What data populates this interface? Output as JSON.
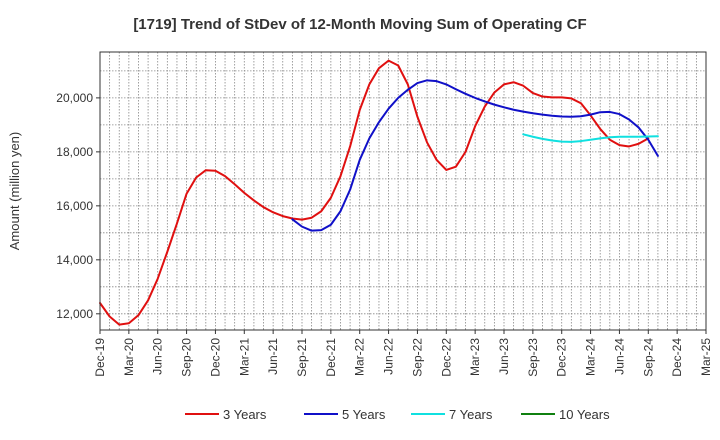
{
  "chart_data": {
    "type": "line",
    "title": "[1719]  Trend of StDev of 12-Month Moving Sum of Operating CF",
    "xlabel": "",
    "ylabel": "Amount (million yen)",
    "ylim": [
      11400,
      21700
    ],
    "yticks": [
      12000,
      14000,
      16000,
      18000,
      20000
    ],
    "ytick_labels": [
      "12,000",
      "14,000",
      "16,000",
      "18,000",
      "20,000"
    ],
    "x_range": [
      "2019-12",
      "2025-03"
    ],
    "xtick_labels": [
      "Dec-19",
      "Mar-20",
      "Jun-20",
      "Sep-20",
      "Dec-20",
      "Mar-21",
      "Jun-21",
      "Sep-21",
      "Dec-21",
      "Mar-22",
      "Jun-22",
      "Sep-22",
      "Dec-22",
      "Mar-23",
      "Jun-23",
      "Sep-23",
      "Dec-23",
      "Mar-24",
      "Jun-24",
      "Sep-24",
      "Dec-24",
      "Mar-25"
    ],
    "grid": true,
    "legend_position": "bottom",
    "series": [
      {
        "name": "3 Years",
        "color": "#e01010",
        "start": "2019-12",
        "values": [
          12400,
          11900,
          11600,
          11650,
          11950,
          12500,
          13300,
          14300,
          15350,
          16450,
          17050,
          17320,
          17300,
          17100,
          16800,
          16480,
          16200,
          15950,
          15760,
          15620,
          15530,
          15490,
          15560,
          15800,
          16300,
          17100,
          18200,
          19550,
          20500,
          21100,
          21380,
          21200,
          20500,
          19300,
          18350,
          17700,
          17330,
          17450,
          18000,
          18950,
          19680,
          20200,
          20500,
          20580,
          20450,
          20180,
          20050,
          20020,
          20020,
          19980,
          19800,
          19350,
          18850,
          18450,
          18250,
          18200,
          18300,
          18500
        ]
      },
      {
        "name": "5 Years",
        "color": "#1010c8",
        "start": "2021-08",
        "values": [
          15500,
          15230,
          15080,
          15100,
          15300,
          15800,
          16600,
          17700,
          18500,
          19100,
          19600,
          20000,
          20300,
          20550,
          20650,
          20620,
          20500,
          20320,
          20150,
          20000,
          19870,
          19750,
          19650,
          19560,
          19490,
          19430,
          19380,
          19340,
          19310,
          19300,
          19320,
          19380,
          19470,
          19480,
          19400,
          19200,
          18900,
          18450,
          17850
        ]
      },
      {
        "name": "7 Years",
        "color": "#10e0e0",
        "start": "2023-08",
        "values": [
          18650,
          18560,
          18480,
          18420,
          18380,
          18370,
          18400,
          18450,
          18500,
          18540,
          18560,
          18560,
          18560,
          18570,
          18580
        ]
      },
      {
        "name": "10 Years",
        "color": "#108010",
        "start": "2019-12",
        "values": []
      }
    ]
  }
}
